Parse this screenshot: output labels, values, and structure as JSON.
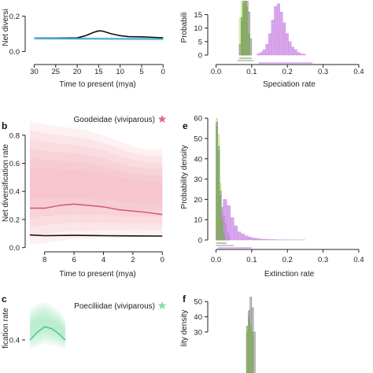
{
  "chart_data": [
    {
      "id": "a",
      "panel_letter": "",
      "type": "line",
      "ylabel": "Net diversi",
      "xlabel": "Time to present (mya)",
      "xlim": [
        31,
        -0.5
      ],
      "ylim": [
        -0.02,
        0.3
      ],
      "xticks": [
        "30",
        "25",
        "20",
        "15",
        "10",
        "5",
        "0"
      ],
      "xtick_values": [
        30,
        25,
        20,
        15,
        10,
        5,
        0
      ],
      "yticks": [
        "0.0",
        "0.2"
      ],
      "ytick_values": [
        0,
        0.2
      ],
      "legend": "",
      "series": [
        {
          "color": "#111111",
          "x": [
            30,
            25,
            20,
            18,
            16,
            15,
            14,
            12,
            10,
            8,
            5,
            2,
            0
          ],
          "y": [
            0.075,
            0.075,
            0.077,
            0.09,
            0.11,
            0.117,
            0.115,
            0.1,
            0.09,
            0.084,
            0.083,
            0.08,
            0.078
          ]
        },
        {
          "color": "#44a8c8",
          "x": [
            30,
            20,
            10,
            0
          ],
          "y": [
            0.074,
            0.073,
            0.072,
            0.071
          ]
        }
      ],
      "band": {
        "color": "#5cc6e0",
        "x": [
          30,
          20,
          10,
          0
        ],
        "upper": [
          0.082,
          0.081,
          0.08,
          0.079
        ],
        "lower": [
          0.066,
          0.064,
          0.063,
          0.062
        ]
      }
    },
    {
      "id": "b",
      "panel_letter": "b",
      "type": "line",
      "ylabel": "Net diversification rate",
      "xlabel": "Time to present (mya)",
      "xlim": [
        9,
        -0.2
      ],
      "ylim": [
        -0.03,
        0.95
      ],
      "xticks": [
        "8",
        "6",
        "4",
        "2",
        "0"
      ],
      "xtick_values": [
        8,
        6,
        4,
        2,
        0
      ],
      "yticks": [
        "0.0",
        "0.2",
        "0.4",
        "0.6",
        "0.8"
      ],
      "ytick_values": [
        0,
        0.2,
        0.4,
        0.6,
        0.8
      ],
      "legend": "Goodeidae (viviparous)",
      "legend_color": "#e06a80",
      "series": [
        {
          "color": "#d85c74",
          "x": [
            9,
            8,
            7,
            6,
            5,
            4,
            3,
            2,
            1,
            0
          ],
          "y": [
            0.28,
            0.28,
            0.3,
            0.31,
            0.3,
            0.29,
            0.27,
            0.26,
            0.25,
            0.235
          ]
        },
        {
          "color": "#111111",
          "x": [
            9,
            8,
            6,
            4,
            2,
            0
          ],
          "y": [
            0.09,
            0.085,
            0.087,
            0.085,
            0.083,
            0.082
          ]
        }
      ],
      "band": {
        "color": "#f4a8b6",
        "x": [
          9,
          8,
          7,
          6,
          5,
          4,
          3,
          2,
          1,
          0
        ],
        "upper": [
          0.9,
          0.88,
          0.86,
          0.85,
          0.83,
          0.8,
          0.76,
          0.72,
          0.7,
          0.7
        ],
        "lower": [
          0.02,
          0.03,
          0.05,
          0.06,
          0.06,
          0.07,
          0.07,
          0.08,
          0.08,
          0.08
        ]
      }
    },
    {
      "id": "c",
      "panel_letter": "c",
      "type": "line",
      "ylabel": "fication rate",
      "xlabel": "",
      "xlim": [
        9,
        -0.2
      ],
      "ylim": [
        0,
        1.0
      ],
      "xticks": [],
      "xtick_values": [],
      "yticks": [
        "0.4"
      ],
      "ytick_values": [
        0.4
      ],
      "legend": "Poeciliidae (viviparous)",
      "legend_color": "#7ee0a8",
      "series": [
        {
          "color": "#4ccc88",
          "x": [
            9,
            8.5,
            8,
            7.5,
            7,
            6.6
          ],
          "y": [
            0.4,
            0.48,
            0.54,
            0.52,
            0.46,
            0.4
          ]
        }
      ],
      "band": {
        "color": "#9ae8bc",
        "x": [
          9,
          8.5,
          8,
          7.5,
          7,
          6.6
        ],
        "upper": [
          0.72,
          0.78,
          0.8,
          0.76,
          0.7,
          0.62
        ],
        "lower": [
          0.3,
          0.33,
          0.36,
          0.35,
          0.33,
          0.3
        ]
      }
    },
    {
      "id": "d",
      "panel_letter": "",
      "type": "bar",
      "ylabel": "Probabili",
      "xlabel": "Speciation rate",
      "xlim": [
        -0.01,
        0.42
      ],
      "ylim": [
        0,
        21
      ],
      "xticks": [
        "0.0",
        "0.1",
        "0.2",
        "0.3",
        "0.4"
      ],
      "xtick_values": [
        0,
        0.1,
        0.2,
        0.3,
        0.4
      ],
      "yticks": [
        "0",
        "5",
        "10",
        "15"
      ],
      "ytick_values": [
        0,
        5,
        10,
        15
      ],
      "legend": "",
      "histograms": [
        {
          "color": "#c4ea7c",
          "bin_width": 0.005,
          "start": 0.065,
          "counts": [
            14,
            20,
            20,
            20,
            10
          ]
        },
        {
          "color": "#aaaaaa",
          "bin_width": 0.005,
          "start": 0.065,
          "counts": [
            4,
            12,
            20,
            20,
            20,
            16,
            6
          ]
        },
        {
          "color": "#7faa5e",
          "bin_width": 0.005,
          "start": 0.07,
          "counts": [
            14,
            19,
            20,
            18,
            8
          ]
        },
        {
          "color": "#cc8ae6",
          "bin_width": 0.008,
          "start": 0.115,
          "counts": [
            0.5,
            1,
            2,
            4,
            8,
            13,
            18,
            19,
            16,
            12,
            8,
            5,
            3,
            2,
            1,
            0.5,
            0.3
          ]
        }
      ],
      "intervals": [
        {
          "color": "#7faa5e",
          "from": 0.065,
          "to": 0.1
        },
        {
          "color": "#aaaaaa",
          "from": 0.06,
          "to": 0.105
        },
        {
          "color": "#cc8ae6",
          "from": 0.12,
          "to": 0.27
        }
      ]
    },
    {
      "id": "e",
      "panel_letter": "e",
      "type": "bar",
      "ylabel": "Probability density",
      "xlabel": "Extinction rate",
      "xlim": [
        -0.01,
        0.42
      ],
      "ylim": [
        0,
        62
      ],
      "xticks": [
        "0.0",
        "0.1",
        "0.2",
        "0.3",
        "0.4"
      ],
      "xtick_values": [
        0,
        0.1,
        0.2,
        0.3,
        0.4
      ],
      "yticks": [
        "0",
        "10",
        "20",
        "30",
        "40",
        "50",
        "60"
      ],
      "ytick_values": [
        0,
        10,
        20,
        30,
        40,
        50,
        60
      ],
      "legend": "",
      "histograms": [
        {
          "color": "#c4ea7c",
          "bin_width": 0.005,
          "start": 0.0,
          "counts": [
            60,
            52,
            28,
            12,
            4,
            1
          ]
        },
        {
          "color": "#aaaaaa",
          "bin_width": 0.005,
          "start": 0.0,
          "counts": [
            58,
            46,
            24,
            16,
            12,
            8,
            4,
            2
          ]
        },
        {
          "color": "#cc8ae6",
          "bin_width": 0.01,
          "start": 0.0,
          "counts": [
            6,
            14,
            20,
            17,
            11,
            7,
            4,
            3,
            2,
            1.5,
            1,
            0.8,
            0.5,
            0.4,
            0.3,
            0.2,
            0.2,
            0.1,
            0.1,
            0.1,
            0.1,
            0.05,
            0.05,
            0.05,
            0.05
          ]
        },
        {
          "color": "#7faa5e",
          "bin_width": 0.005,
          "start": 0.0,
          "counts": [
            56,
            44,
            22,
            10,
            3
          ]
        }
      ],
      "intervals": [
        {
          "color": "#7faa5e",
          "from": 0.0,
          "to": 0.03
        },
        {
          "color": "#aaaaaa",
          "from": 0.0,
          "to": 0.05
        },
        {
          "color": "#cc8ae6",
          "from": 0.005,
          "to": 0.1
        }
      ]
    },
    {
      "id": "f",
      "panel_letter": "f",
      "type": "bar",
      "ylabel": "lity density",
      "xlabel": "",
      "xlim": [
        -0.01,
        0.42
      ],
      "ylim": [
        0,
        62
      ],
      "xticks": [],
      "xtick_values": [],
      "yticks": [
        "30",
        "40",
        "50"
      ],
      "ytick_values": [
        30,
        40,
        50
      ],
      "legend": "",
      "histograms": [
        {
          "color": "#aaaaaa",
          "bin_width": 0.005,
          "start": 0.085,
          "counts": [
            30,
            44,
            53,
            46,
            30
          ]
        },
        {
          "color": "#7faa5e",
          "bin_width": 0.005,
          "start": 0.085,
          "counts": [
            34,
            40,
            34,
            30
          ]
        }
      ],
      "intervals": []
    }
  ]
}
